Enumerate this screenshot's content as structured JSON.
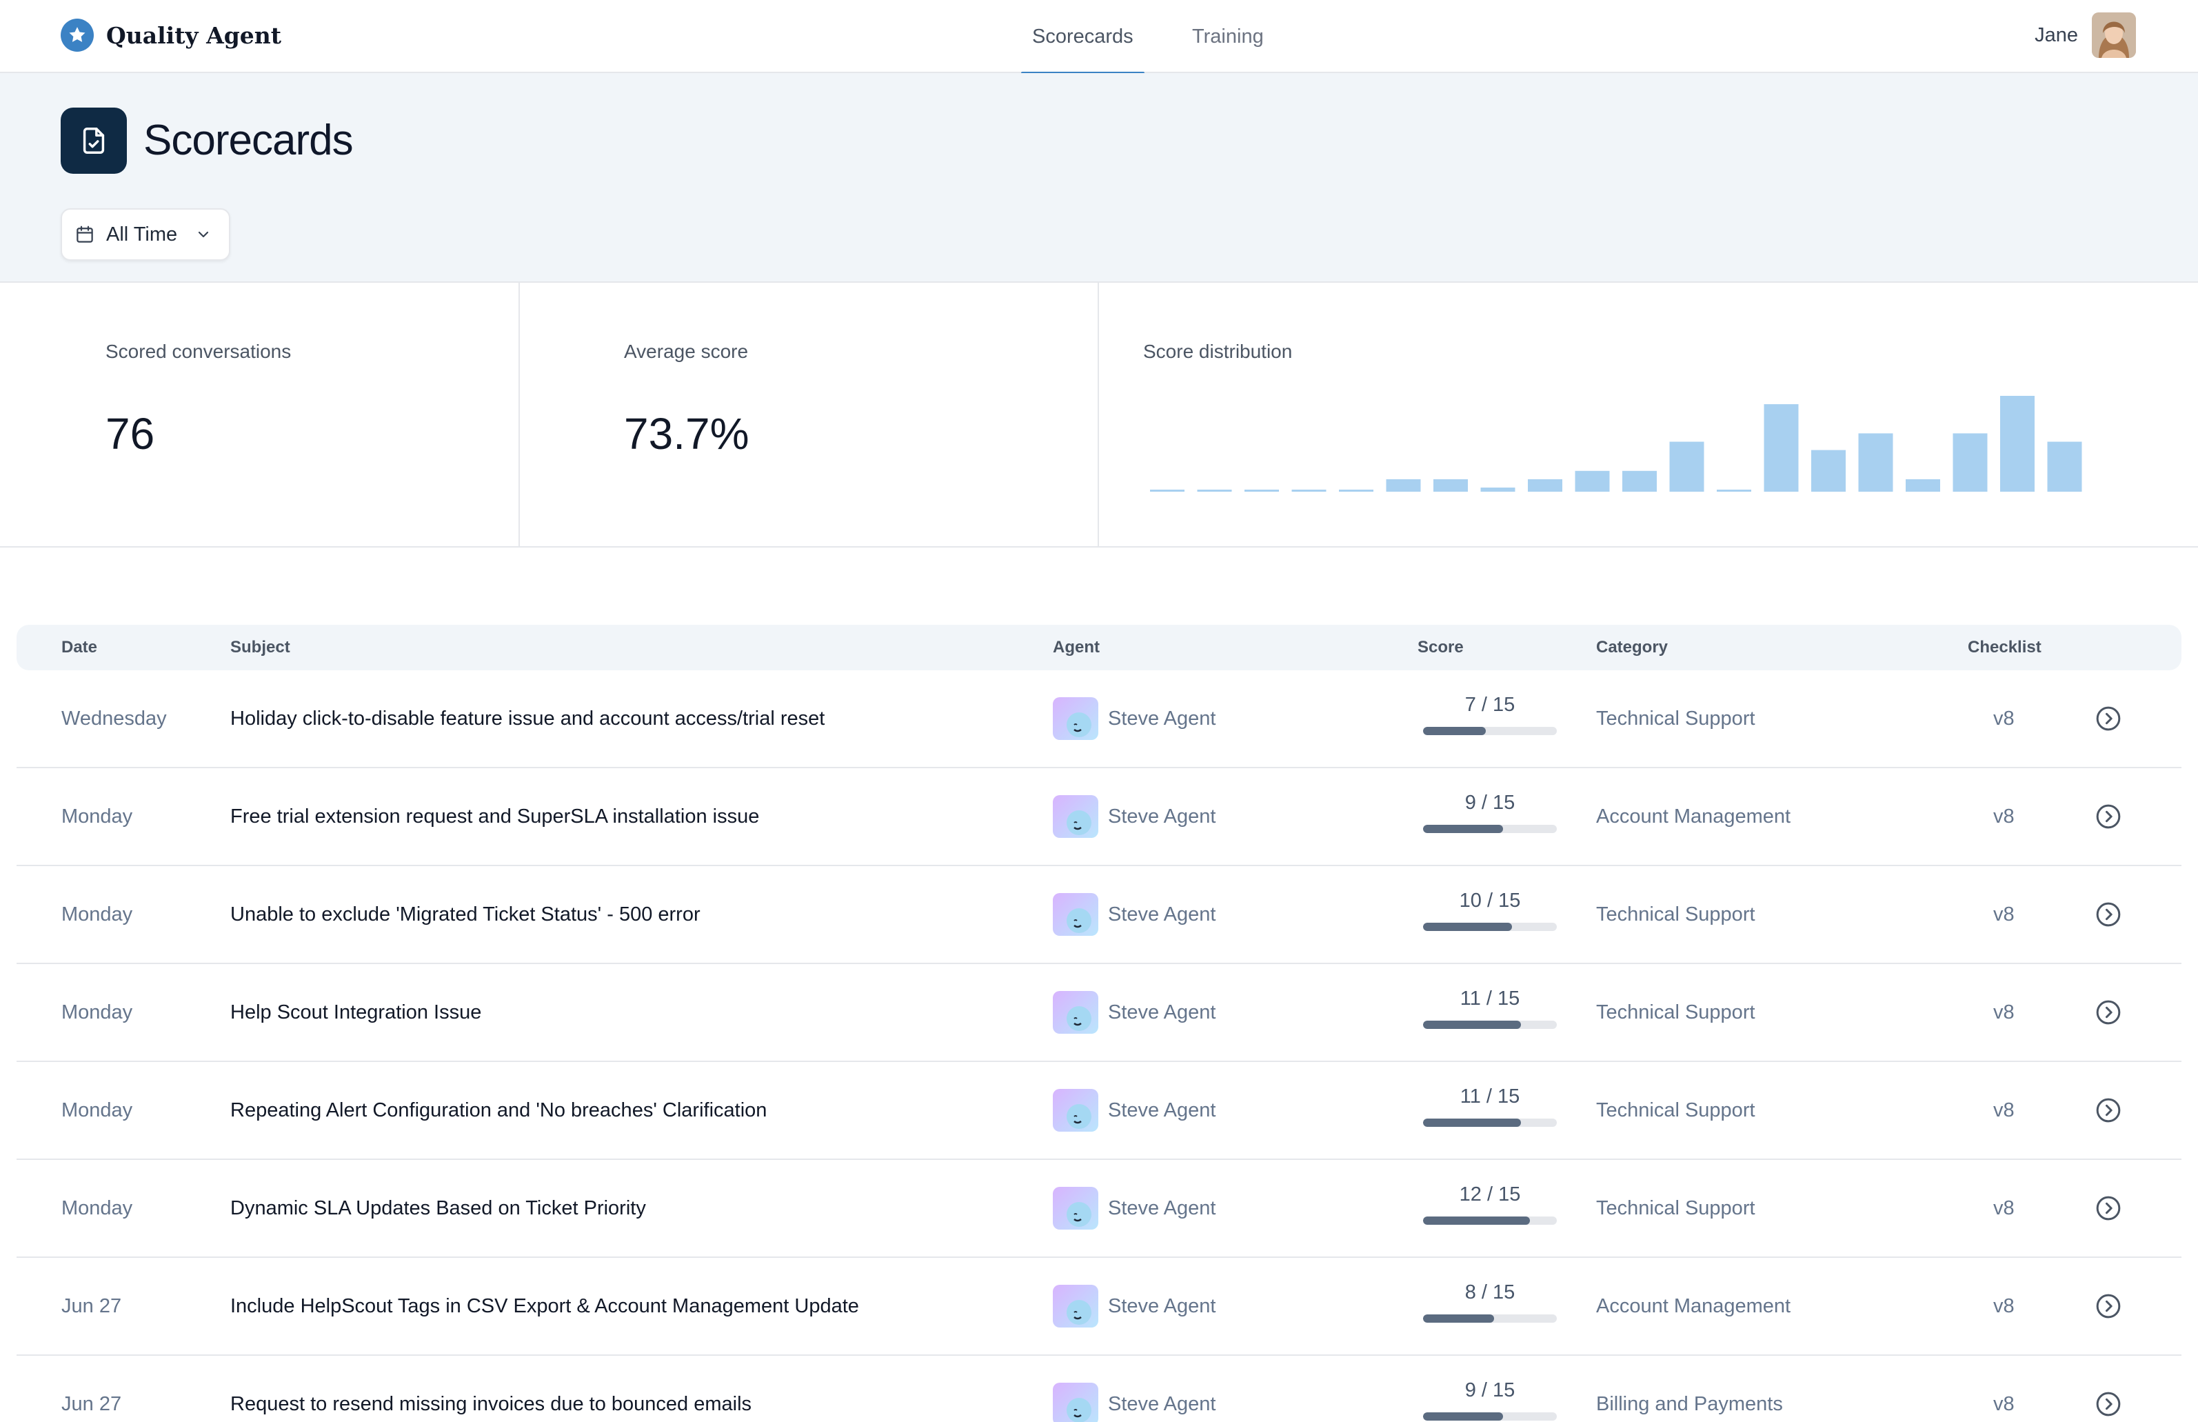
{
  "app": {
    "name": "Quality Agent"
  },
  "nav": {
    "tabs": [
      {
        "label": "Scorecards",
        "active": true
      },
      {
        "label": "Training",
        "active": false
      }
    ]
  },
  "user": {
    "name": "Jane"
  },
  "page": {
    "title": "Scorecards",
    "date_range": "All Time"
  },
  "stats": {
    "scored_label": "Scored conversations",
    "scored_value": "76",
    "avg_label": "Average score",
    "avg_value": "73.7%",
    "dist_label": "Score distribution"
  },
  "chart_data": {
    "type": "bar",
    "title": "Score distribution",
    "values": [
      0,
      0,
      0,
      0,
      0,
      3,
      3,
      1,
      3,
      5,
      5,
      12,
      0,
      21,
      10,
      14,
      3,
      14,
      23,
      12
    ],
    "xlabel": "",
    "ylabel": "",
    "grid": false
  },
  "table": {
    "headers": {
      "date": "Date",
      "subject": "Subject",
      "agent": "Agent",
      "score": "Score",
      "category": "Category",
      "checklist": "Checklist"
    },
    "rows": [
      {
        "date": "Wednesday",
        "subject": "Holiday click-to-disable feature issue and account access/trial reset",
        "agent": "Steve Agent",
        "score": 7,
        "max": 15,
        "score_text": "7 / 15",
        "category": "Technical Support",
        "checklist": "v8"
      },
      {
        "date": "Monday",
        "subject": "Free trial extension request and SuperSLA installation issue",
        "agent": "Steve Agent",
        "score": 9,
        "max": 15,
        "score_text": "9 / 15",
        "category": "Account Management",
        "checklist": "v8"
      },
      {
        "date": "Monday",
        "subject": "Unable to exclude 'Migrated Ticket Status' - 500 error",
        "agent": "Steve Agent",
        "score": 10,
        "max": 15,
        "score_text": "10 / 15",
        "category": "Technical Support",
        "checklist": "v8"
      },
      {
        "date": "Monday",
        "subject": "Help Scout Integration Issue",
        "agent": "Steve Agent",
        "score": 11,
        "max": 15,
        "score_text": "11 / 15",
        "category": "Technical Support",
        "checklist": "v8"
      },
      {
        "date": "Monday",
        "subject": "Repeating Alert Configuration and 'No breaches' Clarification",
        "agent": "Steve Agent",
        "score": 11,
        "max": 15,
        "score_text": "11 / 15",
        "category": "Technical Support",
        "checklist": "v8"
      },
      {
        "date": "Monday",
        "subject": "Dynamic SLA Updates Based on Ticket Priority",
        "agent": "Steve Agent",
        "score": 12,
        "max": 15,
        "score_text": "12 / 15",
        "category": "Technical Support",
        "checklist": "v8"
      },
      {
        "date": "Jun 27",
        "subject": "Include HelpScout Tags in CSV Export & Account Management Update",
        "agent": "Steve Agent",
        "score": 8,
        "max": 15,
        "score_text": "8 / 15",
        "category": "Account Management",
        "checklist": "v8"
      },
      {
        "date": "Jun 27",
        "subject": "Request to resend missing invoices due to bounced emails",
        "agent": "Steve Agent",
        "score": 9,
        "max": 15,
        "score_text": "9 / 15",
        "category": "Billing and Payments",
        "checklist": "v8"
      }
    ]
  }
}
